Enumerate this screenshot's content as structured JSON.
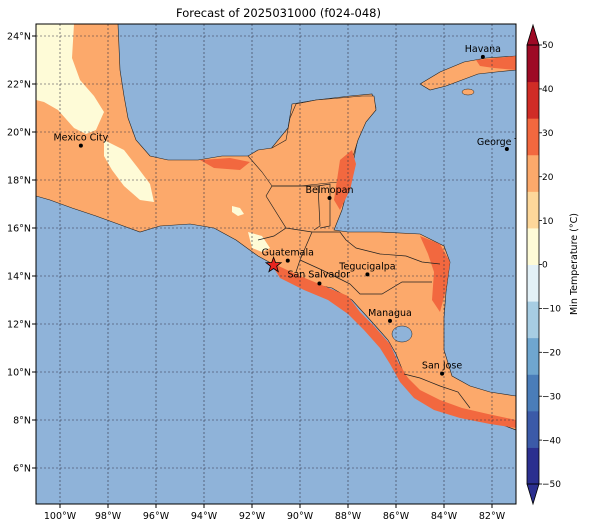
{
  "title": "Forecast of 2025031000 (f024-048)",
  "map": {
    "lon_range": [
      -101,
      -81
    ],
    "lat_range": [
      4.5,
      24.5
    ],
    "ocean_color": "#8fb3d9",
    "lon_ticks": [
      "100°W",
      "98°W",
      "96°W",
      "94°W",
      "92°W",
      "90°W",
      "88°W",
      "86°W",
      "84°W",
      "82°W"
    ],
    "lat_ticks": [
      "6°N",
      "8°N",
      "10°N",
      "12°N",
      "14°N",
      "16°N",
      "18°N",
      "20°N",
      "22°N",
      "24°N"
    ]
  },
  "cities": [
    {
      "name": "Havana",
      "lon": -82.38,
      "lat": 23.13
    },
    {
      "name": "Mexico City",
      "lon": -99.13,
      "lat": 19.43
    },
    {
      "name": "George Town",
      "lon": -81.38,
      "lat": 19.29
    },
    {
      "name": "Belmopan",
      "lon": -88.77,
      "lat": 17.25
    },
    {
      "name": "Guatemala",
      "lon": -90.51,
      "lat": 14.64
    },
    {
      "name": "San Salvador",
      "lon": -89.19,
      "lat": 13.69
    },
    {
      "name": "Tegucigalpa",
      "lon": -87.19,
      "lat": 14.07
    },
    {
      "name": "Managua",
      "lon": -86.25,
      "lat": 12.13
    },
    {
      "name": "San Jose",
      "lon": -84.08,
      "lat": 9.93
    }
  ],
  "marker": {
    "symbol": "star",
    "lon": -91.1,
    "lat": 14.45,
    "color": "#e8251f"
  },
  "colorbar": {
    "label": "Min Temperature (°C)",
    "min": -50,
    "max": 50,
    "ticks": [
      50,
      40,
      30,
      20,
      10,
      0,
      -10,
      -20,
      -30,
      -40,
      -50
    ],
    "colors": [
      "#2b2f8f",
      "#3b5aa8",
      "#4a7db9",
      "#6fa6cf",
      "#a7cde3",
      "#e3f1f7",
      "#fefbd7",
      "#fdd79a",
      "#fca96b",
      "#f2683f",
      "#d02c26",
      "#9e0a25"
    ]
  }
}
